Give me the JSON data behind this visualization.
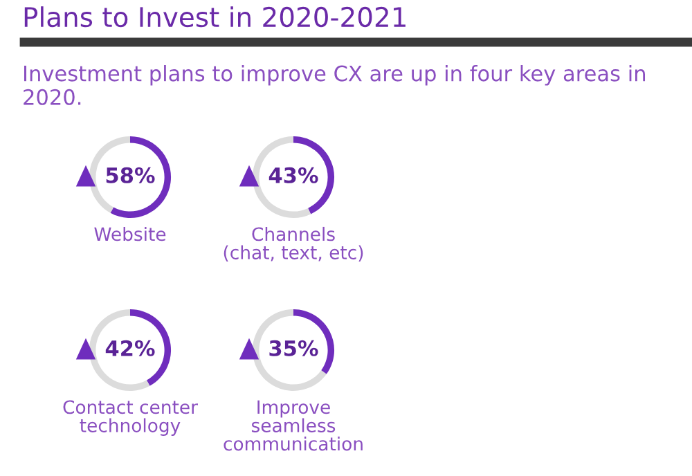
{
  "chart_data": [
    {
      "type": "other",
      "title": "Plans to Invest in 2020-2021",
      "subtitle": "Investment plans to improve CX are up in four key areas in 2020."
    },
    {
      "type": "donut",
      "title": "Website",
      "categories": [
        null,
        null
      ],
      "values": [
        58,
        42
      ],
      "colors": [
        "#6f2dbd",
        "#dcdcdc"
      ],
      "value_labels": [
        "58%",
        null
      ]
    },
    {
      "type": "donut",
      "title": "Channels\n(chat, text, etc)",
      "categories": [
        null,
        null
      ],
      "values": [
        43,
        57
      ],
      "colors": [
        "#6f2dbd",
        "#dcdcdc"
      ],
      "value_labels": [
        "43%",
        null
      ]
    },
    {
      "type": "donut",
      "title": "Contact center\ntechnology",
      "categories": [
        null,
        null
      ],
      "values": [
        42,
        58
      ],
      "colors": [
        "#6f2dbd",
        "#dcdcdc"
      ],
      "value_labels": [
        "42%",
        null
      ]
    },
    {
      "type": "donut",
      "title": "Improve\nseamless\ncommunication",
      "categories": [
        null,
        null
      ],
      "values": [
        35,
        65
      ],
      "colors": [
        "#6f2dbd",
        "#dcdcdc"
      ],
      "value_labels": [
        "35%",
        null
      ]
    }
  ]
}
